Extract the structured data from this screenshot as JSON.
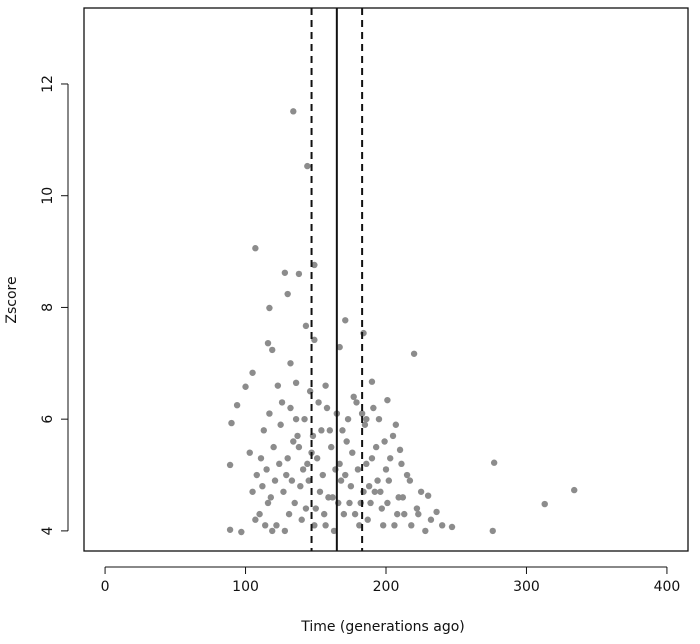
{
  "chart_data": {
    "type": "scatter",
    "x_label": "Time (generations ago)",
    "y_label": "Zscore",
    "xlim": [
      -15,
      415
    ],
    "ylim": [
      3.64,
      13.36
    ],
    "xticks": [
      0,
      100,
      200,
      300,
      400
    ],
    "yticks": [
      4,
      6,
      8,
      10,
      12
    ],
    "color": "#8c8c8c",
    "reference_lines": [
      {
        "x": 165,
        "style": "solid"
      },
      {
        "x": 147,
        "style": "dashed"
      },
      {
        "x": 183,
        "style": "dashed"
      }
    ],
    "x": [
      134,
      144,
      107,
      149,
      128,
      138,
      130,
      117,
      171,
      184,
      143,
      220,
      167,
      116,
      119,
      149,
      132,
      136,
      105,
      100,
      94,
      90,
      277,
      313,
      334,
      89,
      89,
      97,
      276,
      247,
      236,
      230,
      210,
      201,
      190,
      110,
      112,
      115,
      118,
      120,
      122,
      125,
      127,
      130,
      132,
      135,
      137,
      140,
      142,
      145,
      147,
      150,
      152,
      155,
      157,
      160,
      162,
      165,
      167,
      170,
      172,
      175,
      177,
      180,
      182,
      185,
      187,
      190,
      192,
      195,
      197,
      200,
      202,
      205,
      208,
      212,
      215,
      218,
      222,
      225,
      228,
      103,
      105,
      108,
      113,
      117,
      123,
      128,
      133,
      138,
      143,
      148,
      153,
      158,
      163,
      168,
      173,
      178,
      183,
      188,
      193,
      198,
      203,
      207,
      213,
      217,
      223,
      232,
      240,
      107,
      111,
      116,
      121,
      126,
      131,
      136,
      141,
      146,
      151,
      156,
      161,
      166,
      171,
      176,
      181,
      186,
      191,
      196,
      201,
      206,
      211,
      119,
      129,
      139,
      149,
      159,
      169,
      179,
      189,
      199,
      124,
      134,
      144,
      154,
      164,
      174,
      184,
      194,
      209,
      114,
      157,
      186
    ],
    "values": [
      11.51,
      10.53,
      9.06,
      8.76,
      8.62,
      8.6,
      8.24,
      7.99,
      7.77,
      7.54,
      7.67,
      7.17,
      7.29,
      7.36,
      7.24,
      7.42,
      7.0,
      6.65,
      6.83,
      6.58,
      6.25,
      5.93,
      5.22,
      4.48,
      4.73,
      5.18,
      4.02,
      3.98,
      4.0,
      4.07,
      4.34,
      4.63,
      5.45,
      6.34,
      6.67,
      4.3,
      4.8,
      5.1,
      4.6,
      5.5,
      4.1,
      5.9,
      4.7,
      5.3,
      6.2,
      4.5,
      5.7,
      4.2,
      6.0,
      4.9,
      5.4,
      4.4,
      6.3,
      5.0,
      4.1,
      5.8,
      4.6,
      6.1,
      5.2,
      4.3,
      5.6,
      4.8,
      6.4,
      5.1,
      4.5,
      5.9,
      4.2,
      5.3,
      4.7,
      6.0,
      4.4,
      5.1,
      4.9,
      5.7,
      4.3,
      4.6,
      5.0,
      4.1,
      4.4,
      4.7,
      4.0,
      5.4,
      4.7,
      5.0,
      5.8,
      6.1,
      6.6,
      4.0,
      4.9,
      5.5,
      4.4,
      5.7,
      4.7,
      6.2,
      4.0,
      4.9,
      6.0,
      4.3,
      6.1,
      4.8,
      5.5,
      4.1,
      5.3,
      5.9,
      4.3,
      4.9,
      4.3,
      4.2,
      4.1,
      4.2,
      5.3,
      4.5,
      4.9,
      6.3,
      4.3,
      6.0,
      5.1,
      6.5,
      5.3,
      4.3,
      5.5,
      4.5,
      5.0,
      5.4,
      4.1,
      5.2,
      6.2,
      4.7,
      4.5,
      4.1,
      5.2,
      4.0,
      5.0,
      4.8,
      4.1,
      4.6,
      5.8,
      6.3,
      4.5,
      5.6,
      5.2,
      5.6,
      5.2,
      5.8,
      5.1,
      4.5,
      4.7,
      4.9,
      4.6,
      4.1,
      6.6,
      6.0
    ]
  }
}
